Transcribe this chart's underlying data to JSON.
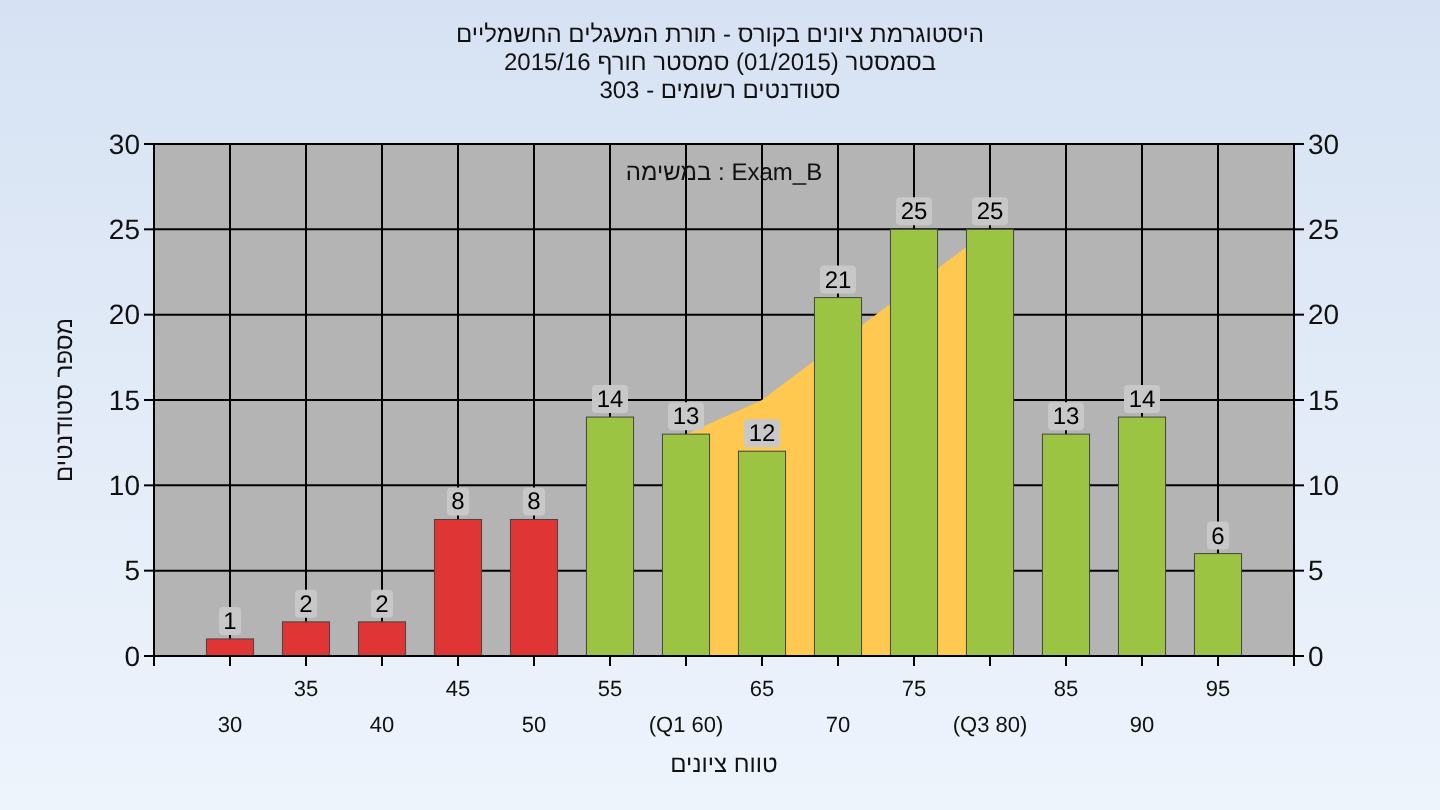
{
  "chart_data": {
    "type": "bar",
    "title": "היסטוגרמת ציונים בקורס - תורת המעגלים החשמליים",
    "subtitle": "בסמסטר  (01/2015)  סמסטר חורף 2015/16\nסטודנטים רשומים - 303",
    "xlabel": "טווח ציונים",
    "ylabel": "מספר סטודנטים",
    "annotations": [
      "במשימה : Exam_B"
    ],
    "categories": [
      "30",
      "35",
      "40",
      "45",
      "50",
      "55",
      "(Q1 60)",
      "65",
      "70",
      "75",
      "(Q3 80)",
      "85",
      "90",
      "95"
    ],
    "series": [
      {
        "type": "area",
        "color": "#ffc850",
        "values": [
          null,
          null,
          null,
          null,
          null,
          null,
          13,
          15,
          null,
          null,
          25,
          null,
          null,
          null
        ]
      },
      {
        "value_labels": [
          "1",
          "2",
          "2",
          "8",
          "8",
          "14",
          "13",
          "12",
          "21",
          "25",
          "25",
          "13",
          "14",
          "6"
        ],
        "colors": [
          "#e03535",
          "#e03535",
          "#e03535",
          "#e03535",
          "#e03535",
          "#9cc443",
          "#9cc443",
          "#9cc443",
          "#9cc443",
          "#9cc443",
          "#9cc443",
          "#9cc443",
          "#9cc443",
          "#9cc443"
        ],
        "values": [
          1,
          2,
          2,
          8,
          8,
          14,
          13,
          12,
          21,
          25,
          25,
          13,
          14,
          6
        ]
      }
    ],
    "ylim": [
      0,
      30
    ],
    "yticks": [
      0,
      5,
      10,
      15,
      20,
      25,
      30
    ],
    "y2lim": [
      0,
      30
    ],
    "y2ticks": [
      0,
      5,
      10,
      15,
      20,
      25,
      30
    ],
    "grid": true
  }
}
